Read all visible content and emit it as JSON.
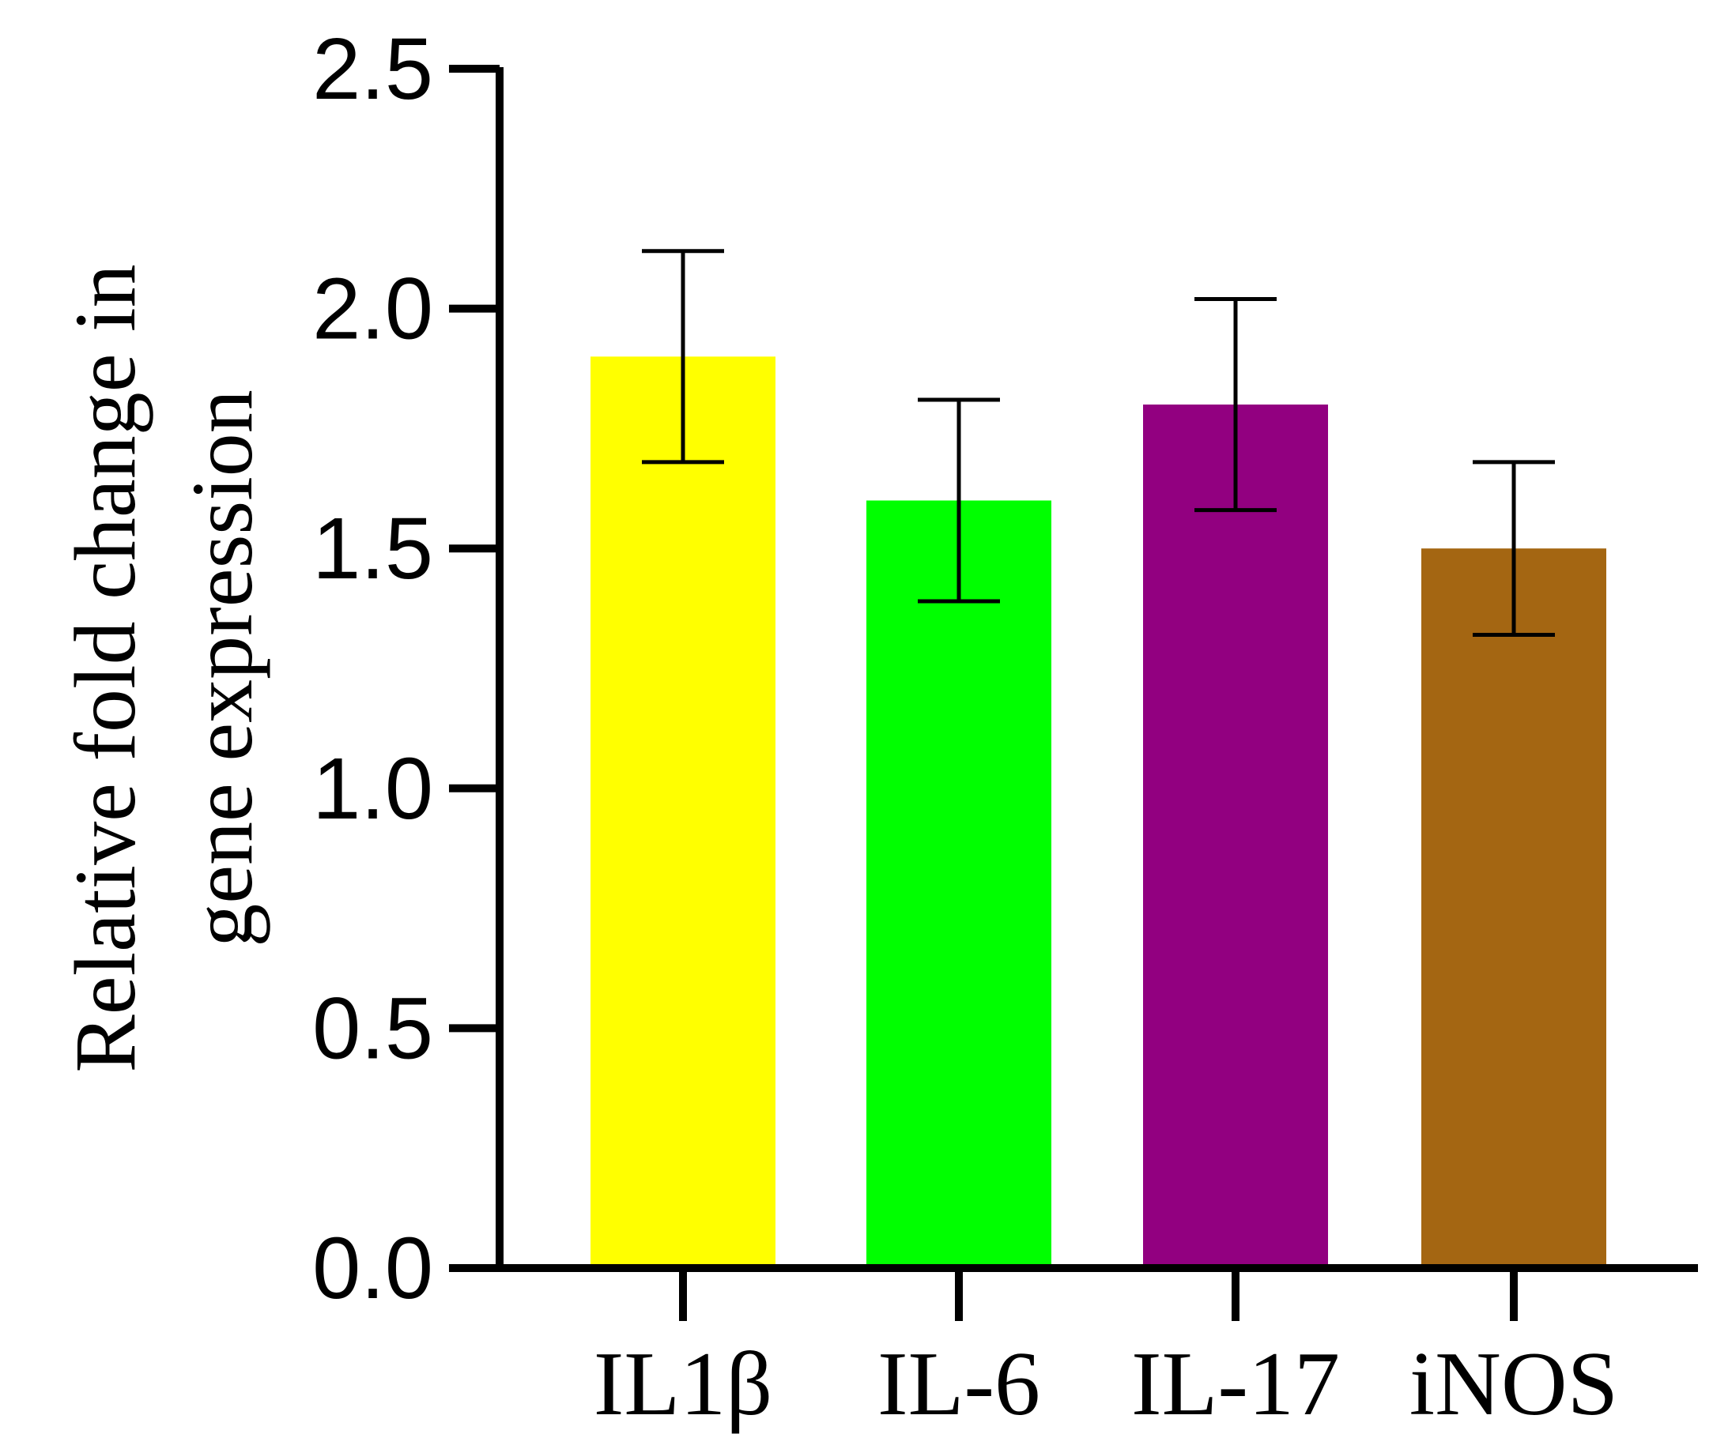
{
  "chart_data": {
    "type": "bar",
    "title": "",
    "xlabel": "",
    "ylabel_lines": [
      "Relative fold change in",
      "gene expression"
    ],
    "categories": [
      "IL1β",
      "IL-6",
      "IL-17",
      "iNOS"
    ],
    "values": [
      1.9,
      1.6,
      1.8,
      1.5
    ],
    "error_upper": [
      2.12,
      1.81,
      2.02,
      1.68
    ],
    "error_lower": [
      1.68,
      1.39,
      1.58,
      1.32
    ],
    "colors": [
      "#ffff00",
      "#00ff00",
      "#920080",
      "#a46612"
    ],
    "ylim": [
      0,
      2.5
    ],
    "yticks": [
      "0.0",
      "0.5",
      "1.0",
      "1.5",
      "2.0",
      "2.5"
    ],
    "ytick_values": [
      0,
      0.5,
      1.0,
      1.5,
      2.0,
      2.5
    ],
    "grid": false,
    "legend": "none"
  }
}
